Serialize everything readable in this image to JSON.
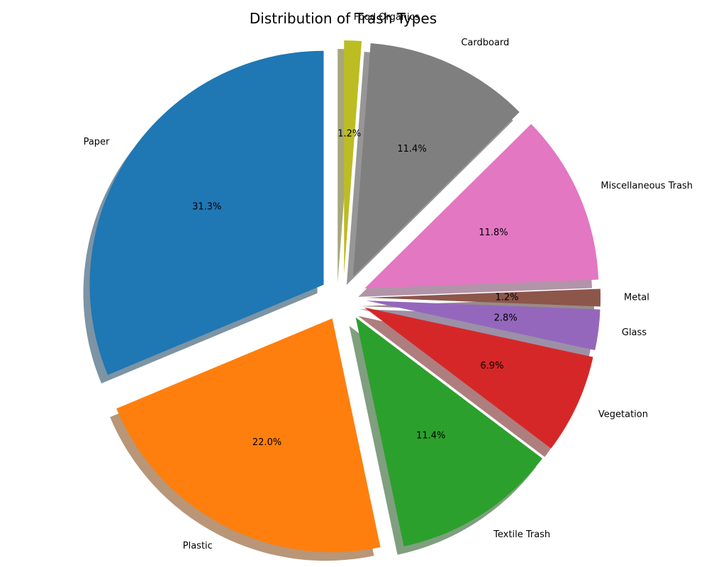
{
  "chart_data": {
    "type": "pie",
    "title": "Distribution of Trash Types",
    "start_angle_deg": 90,
    "direction": "counterclockwise",
    "shadow": true,
    "slices": [
      {
        "label": "Paper",
        "value": 31.3,
        "pct_text": "31.3%",
        "color": "#1f77b4",
        "exploded": true
      },
      {
        "label": "Plastic",
        "value": 22.0,
        "pct_text": "22.0%",
        "color": "#ff7f0e",
        "exploded": true
      },
      {
        "label": "Textile Trash",
        "value": 11.4,
        "pct_text": "11.4%",
        "color": "#2ca02c",
        "exploded": true
      },
      {
        "label": "Vegetation",
        "value": 6.9,
        "pct_text": "6.9%",
        "color": "#d62728",
        "exploded": true
      },
      {
        "label": "Glass",
        "value": 2.8,
        "pct_text": "2.8%",
        "color": "#9467bd",
        "exploded": true
      },
      {
        "label": "Metal",
        "value": 1.2,
        "pct_text": "1.2%",
        "color": "#8c564b",
        "exploded": true
      },
      {
        "label": "Miscellaneous Trash",
        "value": 11.8,
        "pct_text": "11.8%",
        "color": "#e377c2",
        "exploded": true
      },
      {
        "label": "Cardboard",
        "value": 11.4,
        "pct_text": "11.4%",
        "color": "#7f7f7f",
        "exploded": true
      },
      {
        "label": "Food Organics",
        "value": 1.2,
        "pct_text": "1.2%",
        "color": "#bcbd22",
        "exploded": true
      }
    ]
  }
}
